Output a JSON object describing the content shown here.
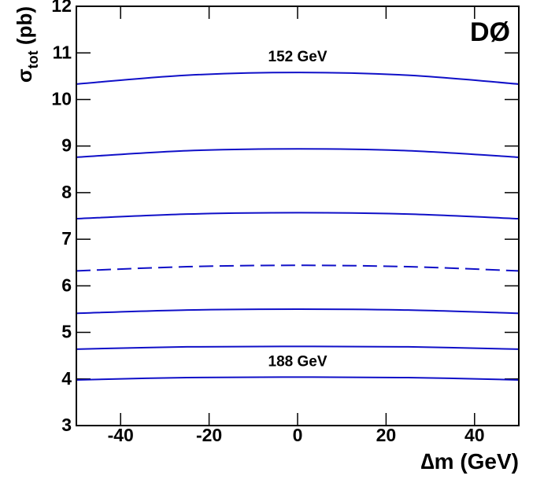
{
  "chart_data": {
    "type": "line",
    "experiment": "DØ",
    "xlabel": {
      "symbol": "∆m",
      "unit": "(GeV)"
    },
    "ylabel": {
      "symbol": "σ",
      "subscript": "tot",
      "unit": "(pb)"
    },
    "x": [
      -50,
      -25,
      0,
      25,
      50
    ],
    "series": [
      {
        "name": "152 GeV",
        "color": "#1010c8",
        "values": [
          10.33,
          10.52,
          10.58,
          10.52,
          10.33
        ]
      },
      {
        "color": "#1010c8",
        "values": [
          8.76,
          8.9,
          8.94,
          8.9,
          8.76
        ]
      },
      {
        "color": "#1010c8",
        "values": [
          7.44,
          7.54,
          7.57,
          7.54,
          7.44
        ]
      },
      {
        "color": "#1010c8",
        "dashed": true,
        "values": [
          6.32,
          6.41,
          6.44,
          6.41,
          6.32
        ]
      },
      {
        "color": "#1010c8",
        "values": [
          5.41,
          5.48,
          5.5,
          5.48,
          5.41
        ]
      },
      {
        "color": "#1010c8",
        "values": [
          4.64,
          4.69,
          4.7,
          4.69,
          4.64
        ]
      },
      {
        "name": "188 GeV",
        "color": "#1010c8",
        "values": [
          3.98,
          4.03,
          4.04,
          4.03,
          3.98
        ]
      }
    ],
    "xlim": [
      -50,
      50
    ],
    "xticks": [
      -40,
      -20,
      0,
      20,
      40
    ],
    "ylim": [
      3,
      12
    ],
    "yticks": [
      3,
      4,
      5,
      6,
      7,
      8,
      9,
      10,
      11,
      12
    ]
  }
}
